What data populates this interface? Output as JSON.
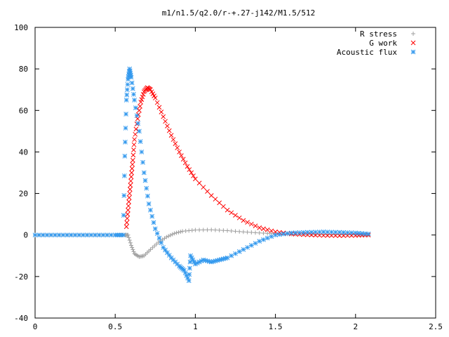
{
  "chart_data": {
    "type": "scatter",
    "title": "m1/n1.5/q2.0/r-+.27-j142/M1.5/512",
    "xlabel": "",
    "ylabel": "",
    "xlim": [
      0,
      2.5
    ],
    "ylim": [
      -40,
      100
    ],
    "x_ticks": [
      0,
      0.5,
      1,
      1.5,
      2,
      2.5
    ],
    "x_tick_labels": [
      "0",
      "0.5",
      "1",
      "1.5",
      "2",
      "2.5"
    ],
    "y_ticks": [
      -40,
      -20,
      0,
      20,
      40,
      60,
      80,
      100
    ],
    "y_tick_labels": [
      "-40",
      "-20",
      "0",
      "20",
      "40",
      "60",
      "80",
      "100"
    ],
    "grid": false,
    "legend_position": "top-right",
    "series": [
      {
        "name": "R stress",
        "marker": "plus",
        "color": "#a0a0a0",
        "points": [
          [
            0.0,
            0
          ],
          [
            0.1,
            0
          ],
          [
            0.2,
            0
          ],
          [
            0.3,
            0
          ],
          [
            0.4,
            0
          ],
          [
            0.5,
            0
          ],
          [
            0.56,
            0
          ],
          [
            0.58,
            0
          ],
          [
            0.6,
            -5
          ],
          [
            0.62,
            -9
          ],
          [
            0.65,
            -10.5
          ],
          [
            0.68,
            -10
          ],
          [
            0.72,
            -7
          ],
          [
            0.77,
            -3.5
          ],
          [
            0.82,
            -1
          ],
          [
            0.87,
            0.8
          ],
          [
            0.92,
            1.8
          ],
          [
            1.0,
            2.4
          ],
          [
            1.1,
            2.5
          ],
          [
            1.2,
            2.1
          ],
          [
            1.3,
            1.5
          ],
          [
            1.4,
            1.0
          ],
          [
            1.5,
            0.6
          ],
          [
            1.6,
            0.4
          ],
          [
            1.7,
            0.3
          ],
          [
            1.8,
            0.2
          ],
          [
            1.9,
            0.1
          ],
          [
            2.0,
            0.05
          ],
          [
            2.08,
            0
          ]
        ]
      },
      {
        "name": "G work",
        "marker": "cross",
        "color": "#ff0000",
        "points": [
          [
            0.57,
            4
          ],
          [
            0.58,
            12
          ],
          [
            0.59,
            20
          ],
          [
            0.6,
            28
          ],
          [
            0.61,
            36
          ],
          [
            0.62,
            46
          ],
          [
            0.64,
            56
          ],
          [
            0.66,
            64
          ],
          [
            0.68,
            69
          ],
          [
            0.7,
            71
          ],
          [
            0.72,
            70
          ],
          [
            0.75,
            66
          ],
          [
            0.8,
            57
          ],
          [
            0.85,
            48
          ],
          [
            0.9,
            40
          ],
          [
            0.95,
            33
          ],
          [
            1.0,
            27
          ],
          [
            1.1,
            19
          ],
          [
            1.2,
            12
          ],
          [
            1.3,
            7
          ],
          [
            1.4,
            3.5
          ],
          [
            1.5,
            1.5
          ],
          [
            1.6,
            0.5
          ],
          [
            1.7,
            0.1
          ],
          [
            1.8,
            -0.2
          ],
          [
            1.9,
            -0.3
          ],
          [
            2.0,
            -0.2
          ],
          [
            2.08,
            0
          ]
        ]
      },
      {
        "name": "Acoustic flux",
        "marker": "star",
        "color": "#3399ee",
        "points": [
          [
            0.0,
            0
          ],
          [
            0.1,
            0
          ],
          [
            0.2,
            0
          ],
          [
            0.3,
            0
          ],
          [
            0.4,
            0
          ],
          [
            0.5,
            0
          ],
          [
            0.55,
            0
          ],
          [
            0.56,
            38
          ],
          [
            0.57,
            65
          ],
          [
            0.58,
            75
          ],
          [
            0.59,
            80
          ],
          [
            0.6,
            76
          ],
          [
            0.62,
            65
          ],
          [
            0.65,
            50
          ],
          [
            0.68,
            30
          ],
          [
            0.71,
            15
          ],
          [
            0.75,
            3
          ],
          [
            0.8,
            -6
          ],
          [
            0.85,
            -11
          ],
          [
            0.9,
            -15
          ],
          [
            0.93,
            -17
          ],
          [
            0.96,
            -22
          ],
          [
            0.97,
            -10
          ],
          [
            1.0,
            -14
          ],
          [
            1.05,
            -12
          ],
          [
            1.1,
            -13
          ],
          [
            1.15,
            -12
          ],
          [
            1.2,
            -11
          ],
          [
            1.3,
            -7
          ],
          [
            1.4,
            -3
          ],
          [
            1.5,
            0
          ],
          [
            1.6,
            1
          ],
          [
            1.7,
            1.3
          ],
          [
            1.8,
            1.5
          ],
          [
            1.9,
            1.3
          ],
          [
            2.0,
            1
          ],
          [
            2.08,
            0.5
          ]
        ]
      }
    ]
  }
}
